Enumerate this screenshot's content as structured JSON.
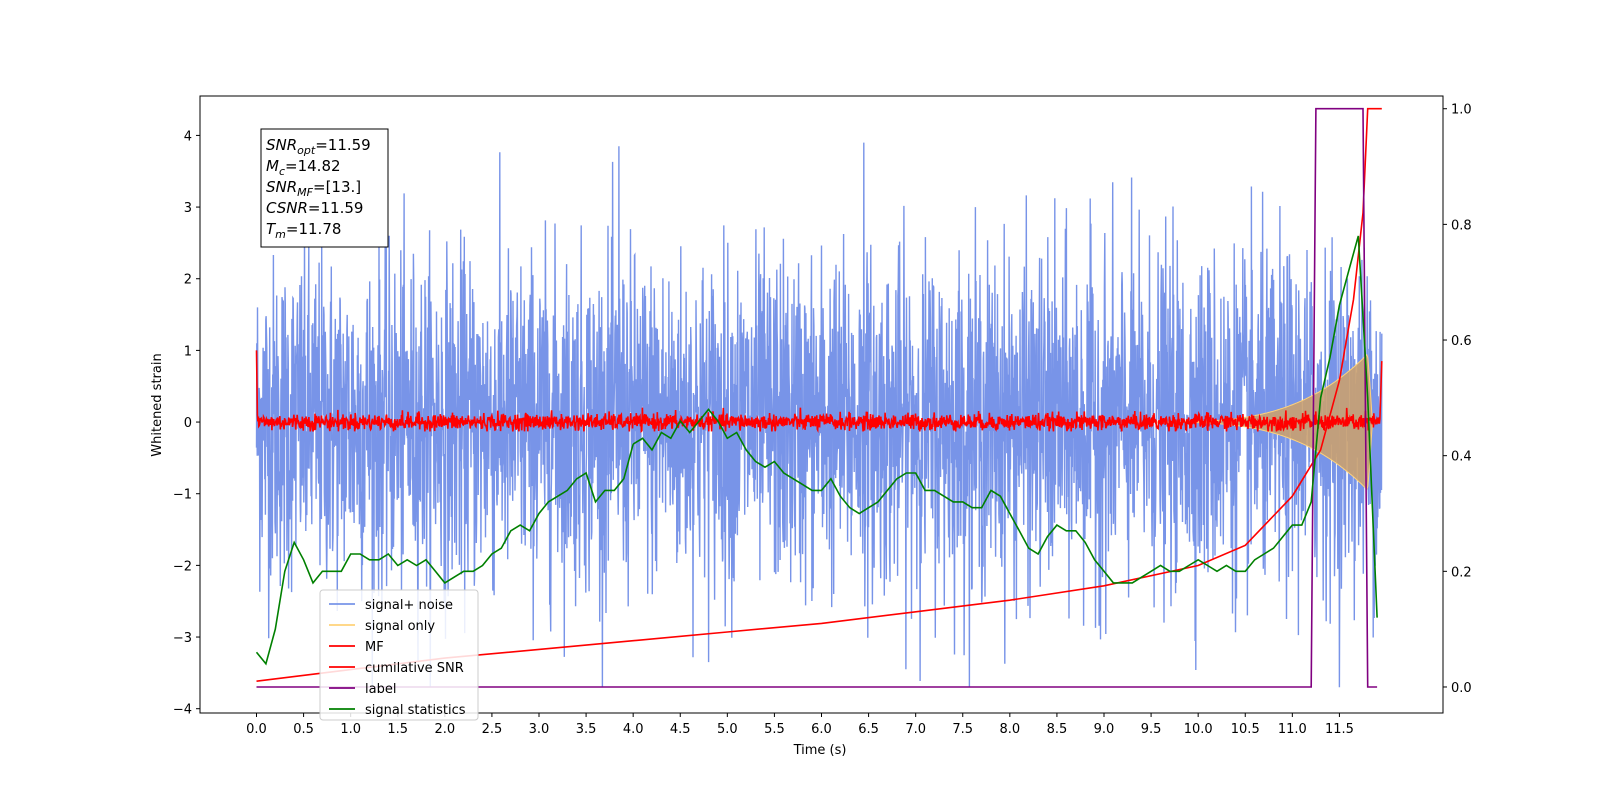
{
  "chart_data": {
    "type": "line",
    "xlabel": "Time (s)",
    "ylabel": "Whitened strain",
    "xlim": [
      -0.6,
      12.6
    ],
    "ylim": [
      -4.06,
      4.55
    ],
    "y2lim": [
      -0.045,
      1.022
    ],
    "x_ticks": [
      "0.0",
      "0.5",
      "1.0",
      "1.5",
      "2.0",
      "2.5",
      "3.0",
      "3.5",
      "4.0",
      "4.5",
      "5.0",
      "5.5",
      "6.0",
      "6.5",
      "7.0",
      "7.5",
      "8.0",
      "8.5",
      "9.0",
      "9.5",
      "10.0",
      "10.5",
      "11.0",
      "11.5"
    ],
    "y_ticks": [
      "4",
      "3",
      "2",
      "1",
      "0",
      "−1",
      "−2",
      "−3",
      "−4"
    ],
    "y2_ticks": [
      "1.0",
      "0.8",
      "0.6",
      "0.4",
      "0.2",
      "0.0"
    ],
    "annotation": [
      {
        "base": "SNR",
        "sub": "opt",
        "value": "=11.59"
      },
      {
        "base": "M",
        "sub": "c",
        "value": "=14.82"
      },
      {
        "base": "SNR",
        "sub": "MF",
        "value": "=[13.]"
      },
      {
        "base": "CSNR",
        "sub": "",
        "value": "=11.59"
      },
      {
        "base": "T",
        "sub": "m",
        "value": "=11.78"
      }
    ],
    "legend_position": "lower-left",
    "series": [
      {
        "name": "signal+ noise",
        "axis": "left",
        "color": "#7894e8",
        "values": "random noise, amplitude about 1.5 (peaks near 4.15 at t=6.45)"
      },
      {
        "name": "signal only",
        "axis": "left",
        "color": "#ffd27a",
        "values": "chirp envelope rising from 0 to about 0.95 at t=11.8"
      },
      {
        "name": "MF",
        "axis": "left",
        "color": "#ff0000",
        "values": "noise around 0 with amplitude about 0.1, spike to 1.0 at t=0"
      },
      {
        "name": "cumilative SNR",
        "axis": "right",
        "color": "#ff0000",
        "x": [
          0.0,
          1.0,
          2.0,
          3.0,
          4.0,
          5.0,
          6.0,
          7.0,
          8.0,
          9.0,
          10.0,
          10.5,
          11.0,
          11.3,
          11.5,
          11.65,
          11.75,
          11.8,
          11.95
        ],
        "y": [
          0.01,
          0.03,
          0.05,
          0.065,
          0.08,
          0.095,
          0.11,
          0.13,
          0.15,
          0.175,
          0.21,
          0.245,
          0.33,
          0.41,
          0.53,
          0.67,
          0.82,
          1.0,
          1.0
        ]
      },
      {
        "name": "label",
        "axis": "right",
        "color": "#800080",
        "x": [
          0.0,
          11.2,
          11.25,
          11.75,
          11.8,
          11.9
        ],
        "y": [
          0.0,
          0.0,
          1.0,
          1.0,
          0.0,
          0.0
        ]
      },
      {
        "name": "signal statistics",
        "axis": "right",
        "color": "#008000",
        "x": [
          0.0,
          0.1,
          0.2,
          0.3,
          0.4,
          0.5,
          0.6,
          0.7,
          0.8,
          0.9,
          1.0,
          1.1,
          1.2,
          1.3,
          1.4,
          1.5,
          1.6,
          1.7,
          1.8,
          1.9,
          2.0,
          2.1,
          2.2,
          2.3,
          2.4,
          2.5,
          2.6,
          2.7,
          2.8,
          2.9,
          3.0,
          3.1,
          3.2,
          3.3,
          3.4,
          3.5,
          3.6,
          3.7,
          3.8,
          3.9,
          4.0,
          4.1,
          4.2,
          4.3,
          4.4,
          4.5,
          4.6,
          4.7,
          4.8,
          4.9,
          5.0,
          5.1,
          5.2,
          5.3,
          5.4,
          5.5,
          5.6,
          5.7,
          5.8,
          5.9,
          6.0,
          6.1,
          6.2,
          6.3,
          6.4,
          6.5,
          6.6,
          6.7,
          6.8,
          6.9,
          7.0,
          7.1,
          7.2,
          7.3,
          7.4,
          7.5,
          7.6,
          7.7,
          7.8,
          7.9,
          8.0,
          8.1,
          8.2,
          8.3,
          8.4,
          8.5,
          8.6,
          8.7,
          8.8,
          8.9,
          9.0,
          9.1,
          9.2,
          9.3,
          9.4,
          9.5,
          9.6,
          9.7,
          9.8,
          9.9,
          10.0,
          10.1,
          10.2,
          10.3,
          10.4,
          10.5,
          10.6,
          10.7,
          10.8,
          10.9,
          11.0,
          11.1,
          11.2,
          11.3,
          11.4,
          11.5,
          11.6,
          11.7,
          11.8,
          11.9
        ],
        "y": [
          0.06,
          0.04,
          0.1,
          0.2,
          0.25,
          0.22,
          0.18,
          0.2,
          0.2,
          0.2,
          0.23,
          0.23,
          0.22,
          0.22,
          0.23,
          0.21,
          0.22,
          0.21,
          0.22,
          0.2,
          0.18,
          0.19,
          0.2,
          0.2,
          0.21,
          0.23,
          0.24,
          0.27,
          0.28,
          0.27,
          0.3,
          0.32,
          0.33,
          0.34,
          0.36,
          0.37,
          0.32,
          0.34,
          0.34,
          0.36,
          0.42,
          0.43,
          0.41,
          0.44,
          0.43,
          0.46,
          0.44,
          0.46,
          0.48,
          0.46,
          0.43,
          0.44,
          0.41,
          0.39,
          0.38,
          0.39,
          0.37,
          0.36,
          0.35,
          0.34,
          0.34,
          0.36,
          0.33,
          0.31,
          0.3,
          0.31,
          0.32,
          0.34,
          0.36,
          0.37,
          0.37,
          0.34,
          0.34,
          0.33,
          0.32,
          0.32,
          0.31,
          0.31,
          0.34,
          0.33,
          0.3,
          0.27,
          0.24,
          0.23,
          0.26,
          0.28,
          0.27,
          0.27,
          0.25,
          0.22,
          0.2,
          0.18,
          0.18,
          0.18,
          0.19,
          0.2,
          0.21,
          0.2,
          0.2,
          0.21,
          0.22,
          0.21,
          0.2,
          0.21,
          0.2,
          0.2,
          0.22,
          0.23,
          0.24,
          0.26,
          0.28,
          0.28,
          0.32,
          0.5,
          0.57,
          0.66,
          0.72,
          0.78,
          0.5,
          0.12
        ]
      }
    ]
  }
}
